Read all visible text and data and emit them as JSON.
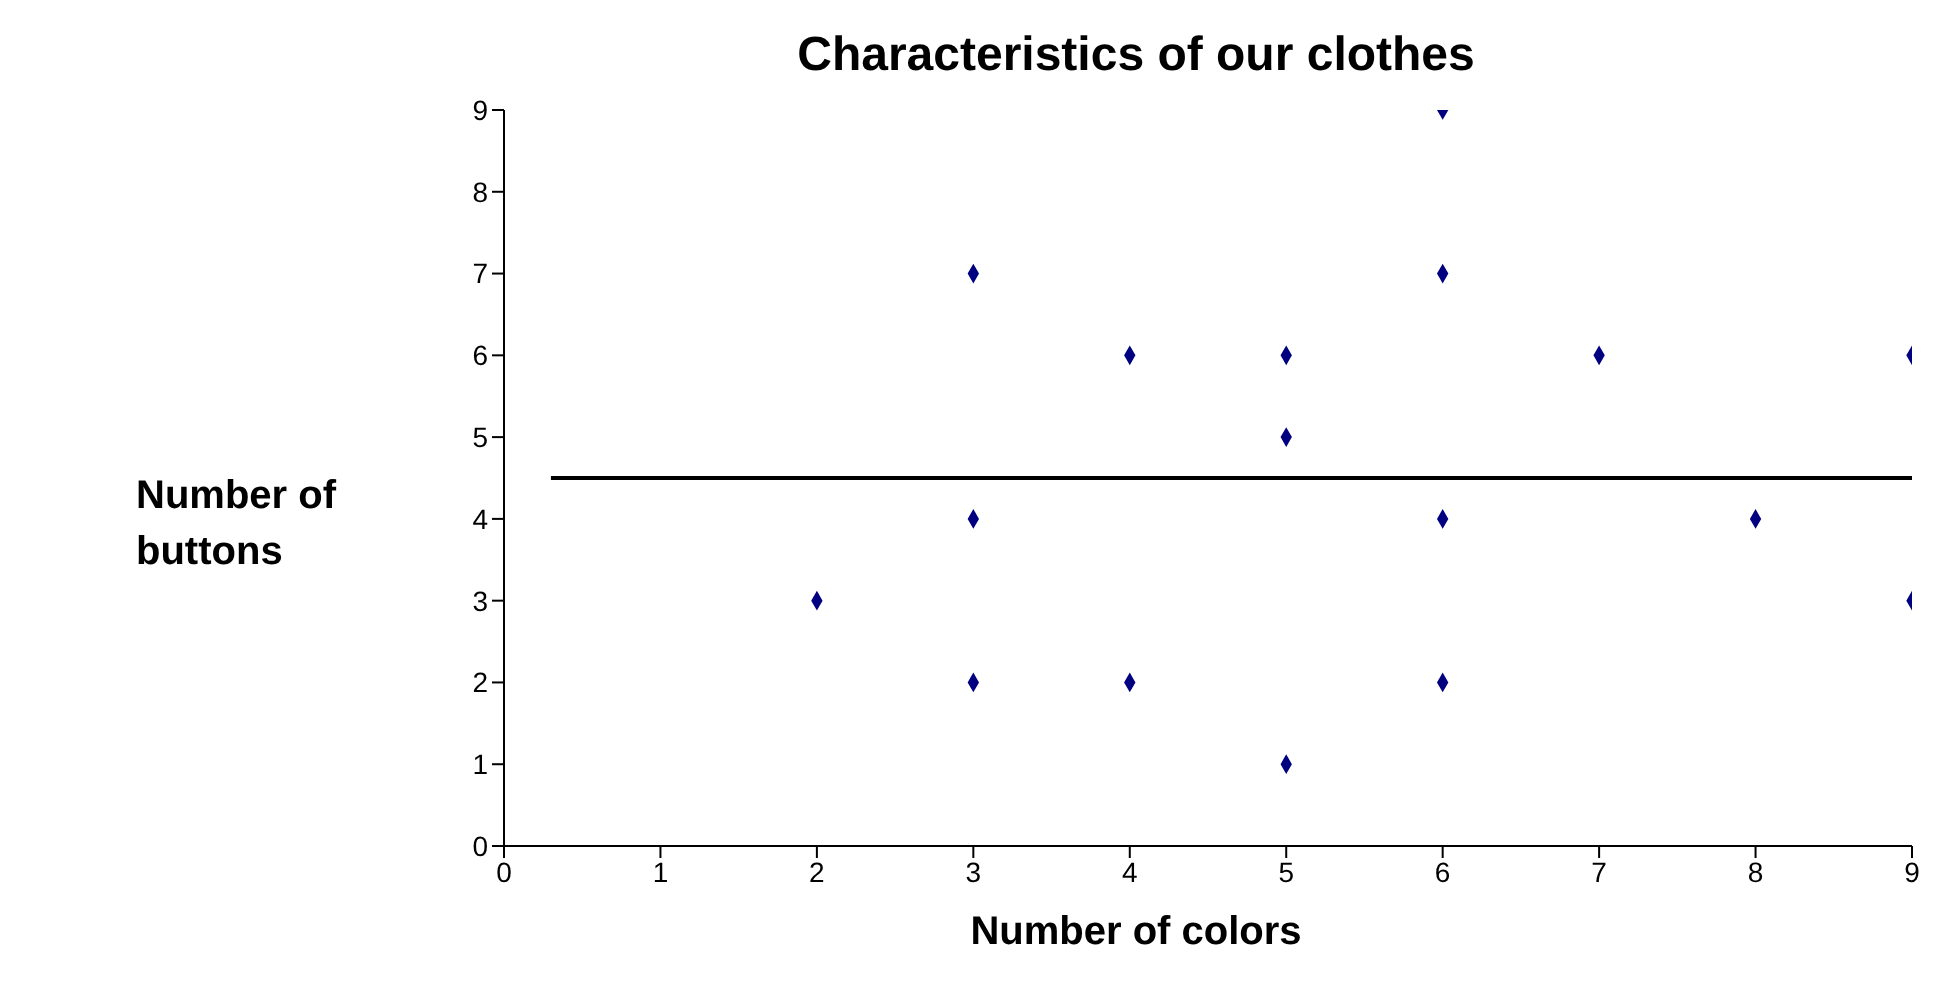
{
  "chart_data": {
    "type": "scatter",
    "title": "Characteristics of our clothes",
    "xlabel": "Number of colors",
    "ylabel": "Number of buttons",
    "x": [
      2,
      3,
      3,
      3,
      4,
      4,
      5,
      5,
      5,
      6,
      6,
      6,
      6,
      7,
      8,
      9,
      9
    ],
    "series": [
      {
        "color": "#000080",
        "values": [
          3,
          7,
          4,
          2,
          6,
          2,
          6,
          5,
          1,
          9,
          7,
          4,
          2,
          6,
          4,
          6,
          3
        ]
      },
      {
        "type": "line",
        "color": "#000000",
        "x": [
          0.3,
          9
        ],
        "values": [
          4.5,
          4.5
        ],
        "line_style": "solid",
        "marker": "none"
      }
    ],
    "xlim": [
      0,
      9
    ],
    "xticks": [
      0,
      1,
      2,
      3,
      4,
      5,
      6,
      7,
      8,
      9
    ],
    "ylim": [
      0,
      9
    ],
    "yticks": [
      0,
      1,
      2,
      3,
      4,
      5,
      6,
      7,
      8,
      9
    ],
    "grid": false,
    "marker": "diamond"
  }
}
